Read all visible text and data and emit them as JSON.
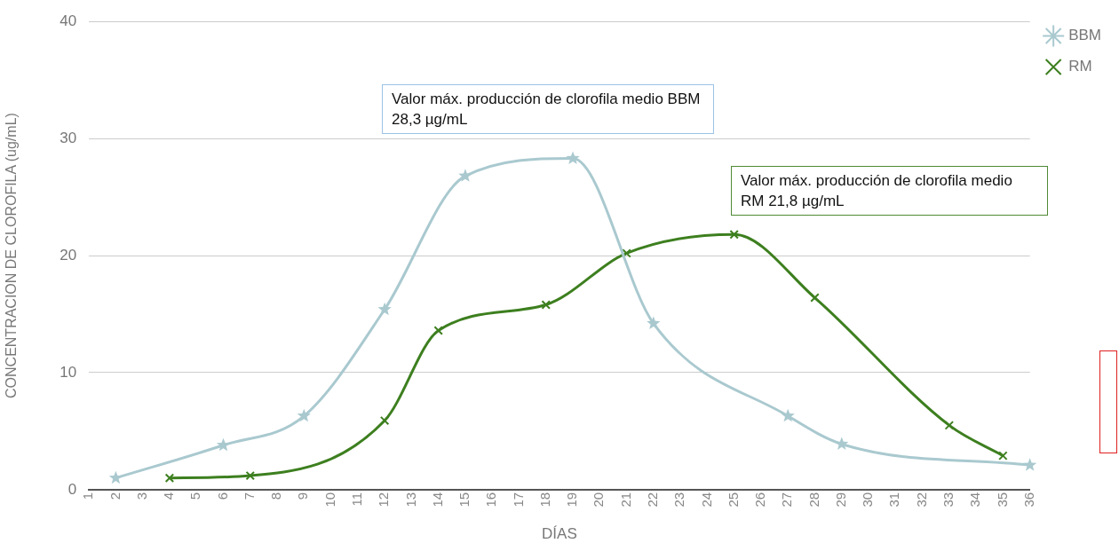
{
  "chart_data": {
    "type": "line",
    "xlabel": "DÍAS",
    "ylabel": "CONCENTRACION DE CLOROFILA (ug/mL)",
    "xlim": [
      1,
      36
    ],
    "xticks": [
      1,
      2,
      3,
      4,
      5,
      6,
      7,
      8,
      9,
      10,
      11,
      12,
      13,
      14,
      15,
      16,
      17,
      18,
      19,
      20,
      21,
      22,
      23,
      24,
      25,
      26,
      27,
      28,
      29,
      30,
      31,
      32,
      33,
      34,
      35,
      36
    ],
    "ylim": [
      0,
      40
    ],
    "yticks": [
      0,
      10,
      20,
      30,
      40
    ],
    "grid": "y",
    "legend": "top right",
    "series": [
      {
        "name": "BBM",
        "color": "#a9c9cf",
        "marker": "star",
        "x": [
          2,
          6,
          9,
          12,
          15,
          19,
          22,
          27,
          29,
          36
        ],
        "values": [
          1.0,
          3.8,
          6.3,
          15.4,
          26.8,
          28.3,
          14.2,
          6.3,
          3.9,
          2.1
        ]
      },
      {
        "name": "RM",
        "color": "#3d7f1f",
        "marker": "cross",
        "x": [
          4,
          7,
          12,
          14,
          18,
          21,
          25,
          28,
          33,
          35
        ],
        "values": [
          1.0,
          1.2,
          5.9,
          13.6,
          15.8,
          20.2,
          21.8,
          16.4,
          5.5,
          2.9
        ]
      }
    ],
    "annotations": [
      "Valor máx. producción de clorofila medio BBM 28,3 µg/mL",
      "Valor máx. producción de clorofila medio RM 21,8 µg/mL"
    ]
  }
}
